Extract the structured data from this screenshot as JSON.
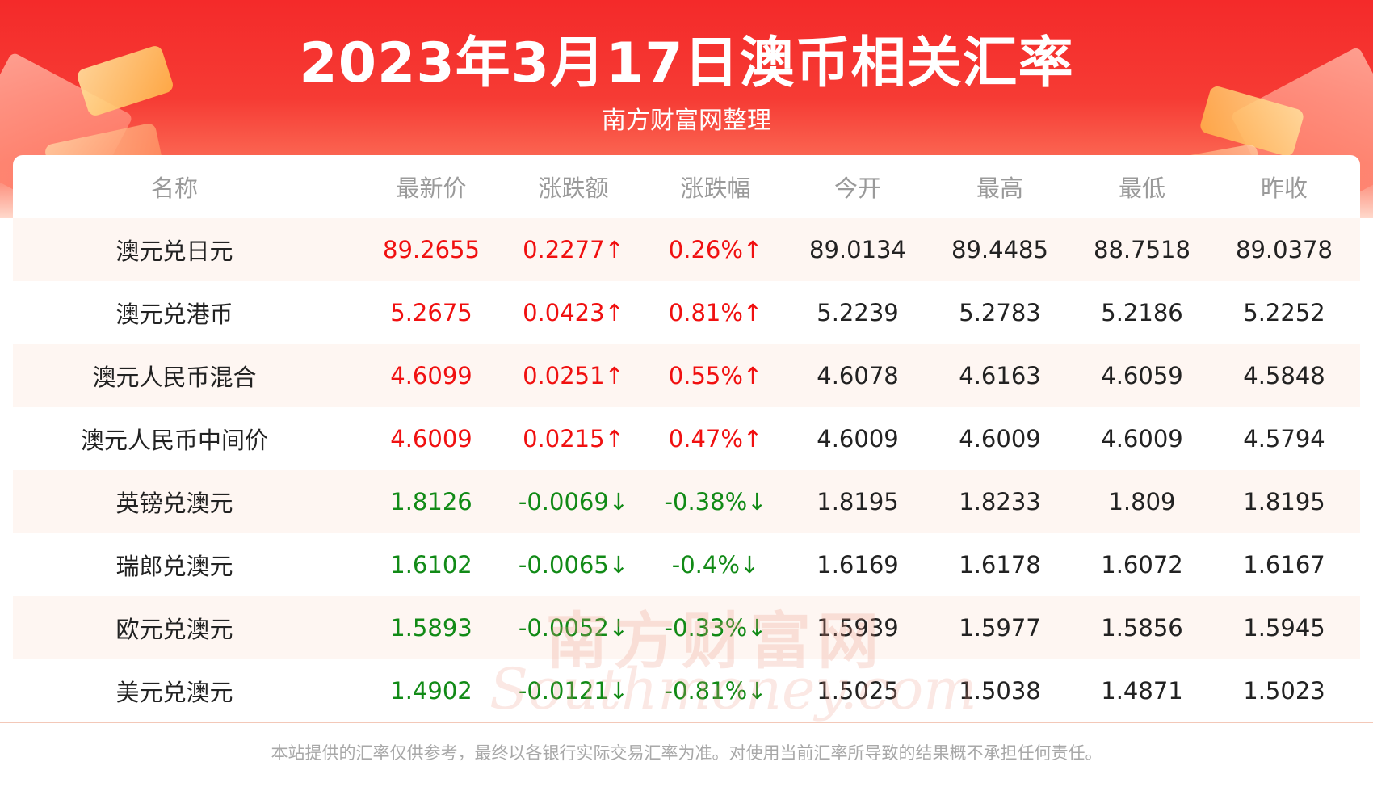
{
  "header": {
    "title": "2023年3月17日澳币相关汇率",
    "subtitle": "南方财富网整理"
  },
  "table": {
    "columns": [
      "名称",
      "最新价",
      "涨跌额",
      "涨跌幅",
      "今开",
      "最高",
      "最低",
      "昨收"
    ],
    "rows": [
      {
        "name": "澳元兑日元",
        "latest": "89.2655",
        "change": "0.2277↑",
        "change_pct": "0.26%↑",
        "open": "89.0134",
        "high": "89.4485",
        "low": "88.7518",
        "prev_close": "89.0378",
        "trend": "up"
      },
      {
        "name": "澳元兑港币",
        "latest": "5.2675",
        "change": "0.0423↑",
        "change_pct": "0.81%↑",
        "open": "5.2239",
        "high": "5.2783",
        "low": "5.2186",
        "prev_close": "5.2252",
        "trend": "up"
      },
      {
        "name": "澳元人民币混合",
        "latest": "4.6099",
        "change": "0.0251↑",
        "change_pct": "0.55%↑",
        "open": "4.6078",
        "high": "4.6163",
        "low": "4.6059",
        "prev_close": "4.5848",
        "trend": "up"
      },
      {
        "name": "澳元人民币中间价",
        "latest": "4.6009",
        "change": "0.0215↑",
        "change_pct": "0.47%↑",
        "open": "4.6009",
        "high": "4.6009",
        "low": "4.6009",
        "prev_close": "4.5794",
        "trend": "up"
      },
      {
        "name": "英镑兑澳元",
        "latest": "1.8126",
        "change": "-0.0069↓",
        "change_pct": "-0.38%↓",
        "open": "1.8195",
        "high": "1.8233",
        "low": "1.809",
        "prev_close": "1.8195",
        "trend": "down"
      },
      {
        "name": "瑞郎兑澳元",
        "latest": "1.6102",
        "change": "-0.0065↓",
        "change_pct": "-0.4%↓",
        "open": "1.6169",
        "high": "1.6178",
        "low": "1.6072",
        "prev_close": "1.6167",
        "trend": "down"
      },
      {
        "name": "欧元兑澳元",
        "latest": "1.5893",
        "change": "-0.0052↓",
        "change_pct": "-0.33%↓",
        "open": "1.5939",
        "high": "1.5977",
        "low": "1.5856",
        "prev_close": "1.5945",
        "trend": "down"
      },
      {
        "name": "美元兑澳元",
        "latest": "1.4902",
        "change": "-0.0121↓",
        "change_pct": "-0.81%↓",
        "open": "1.5025",
        "high": "1.5038",
        "low": "1.4871",
        "prev_close": "1.5023",
        "trend": "down"
      }
    ]
  },
  "watermark": {
    "cn": "南方财富网",
    "en": "Southmoney.com"
  },
  "footer": {
    "disclaimer": "本站提供的汇率仅供参考，最终以各银行实际交易汇率为准。对使用当前汇率所导致的结果概不承担任何责任。"
  },
  "colors": {
    "up": "#f01010",
    "down": "#118a16",
    "banner": "#f42a2a",
    "row_alt": "#fef6f2"
  }
}
